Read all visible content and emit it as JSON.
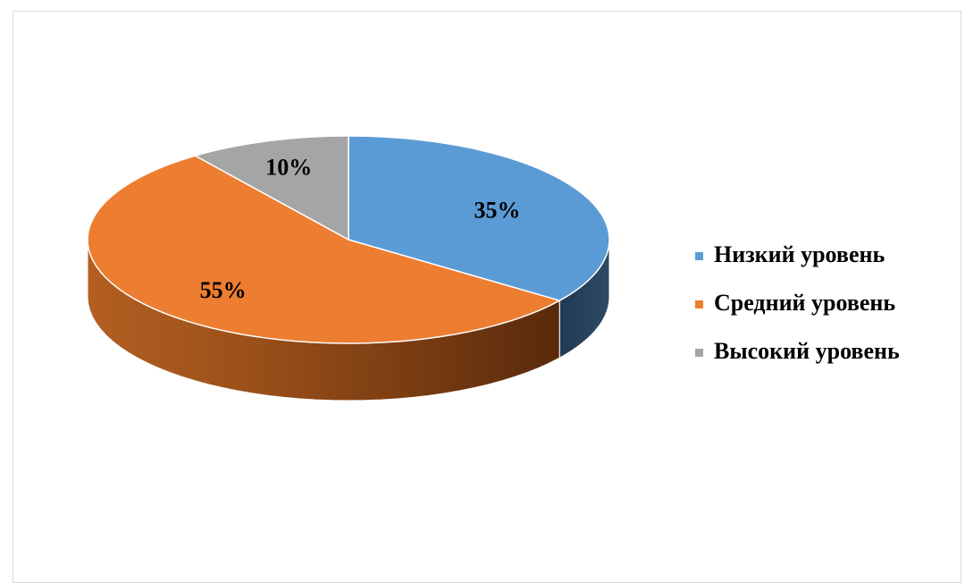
{
  "chart_data": {
    "type": "pie",
    "style": "3d",
    "categories": [
      "Низкий уровень",
      "Средний уровень",
      "Высокий уровень"
    ],
    "values": [
      35,
      55,
      10
    ],
    "data_labels": [
      "35%",
      "55%",
      "10%"
    ],
    "colors": [
      "#5b9bd5",
      "#ed7d31",
      "#a5a5a5"
    ],
    "side_colors": [
      "#2e4a63",
      "#8a4616",
      "#5e5e5e"
    ],
    "legend_position": "right",
    "title": ""
  }
}
